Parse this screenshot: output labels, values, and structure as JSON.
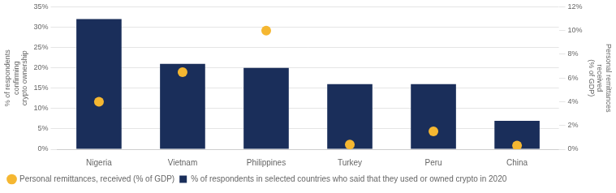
{
  "chart_data": {
    "type": "bar",
    "categories": [
      "Nigeria",
      "Vietnam",
      "Philippines",
      "Turkey",
      "Peru",
      "China"
    ],
    "series": [
      {
        "name": "% of respondents in selected countries who said that they used or owned crypto in 2020",
        "type": "bar",
        "color": "#1a2e5a",
        "values": [
          32,
          21,
          20,
          16,
          16,
          7
        ]
      },
      {
        "name": "Personal remittances, received (% of GDP)",
        "type": "scatter",
        "marker": "circle",
        "color": "#f5b731",
        "axis": "y2",
        "values": [
          4.0,
          6.5,
          10.0,
          0.4,
          1.5,
          0.3
        ]
      }
    ],
    "ylabel": "% of respondents\nconfirming\ncrypto ownership",
    "y2label": "Personal remittances\nreceived\n(% of GDP)",
    "ylim": [
      0,
      35
    ],
    "yticks": [
      {
        "value": 0,
        "label": "0%"
      },
      {
        "value": 5,
        "label": "5%"
      },
      {
        "value": 10,
        "label": "10%"
      },
      {
        "value": 15,
        "label": "15%"
      },
      {
        "value": 20,
        "label": "20%"
      },
      {
        "value": 25,
        "label": "25%"
      },
      {
        "value": 30,
        "label": "30%"
      },
      {
        "value": 35,
        "label": "35%"
      }
    ],
    "y2lim": [
      0,
      12
    ],
    "y2ticks": [
      {
        "value": 0,
        "label": "0%"
      },
      {
        "value": 2,
        "label": "2%"
      },
      {
        "value": 4,
        "label": "4%"
      },
      {
        "value": 6,
        "label": "6%"
      },
      {
        "value": 8,
        "label": "8%"
      },
      {
        "value": 10,
        "label": "10%"
      },
      {
        "value": 12,
        "label": "12%"
      }
    ],
    "grid": true,
    "legend": "bottom"
  }
}
